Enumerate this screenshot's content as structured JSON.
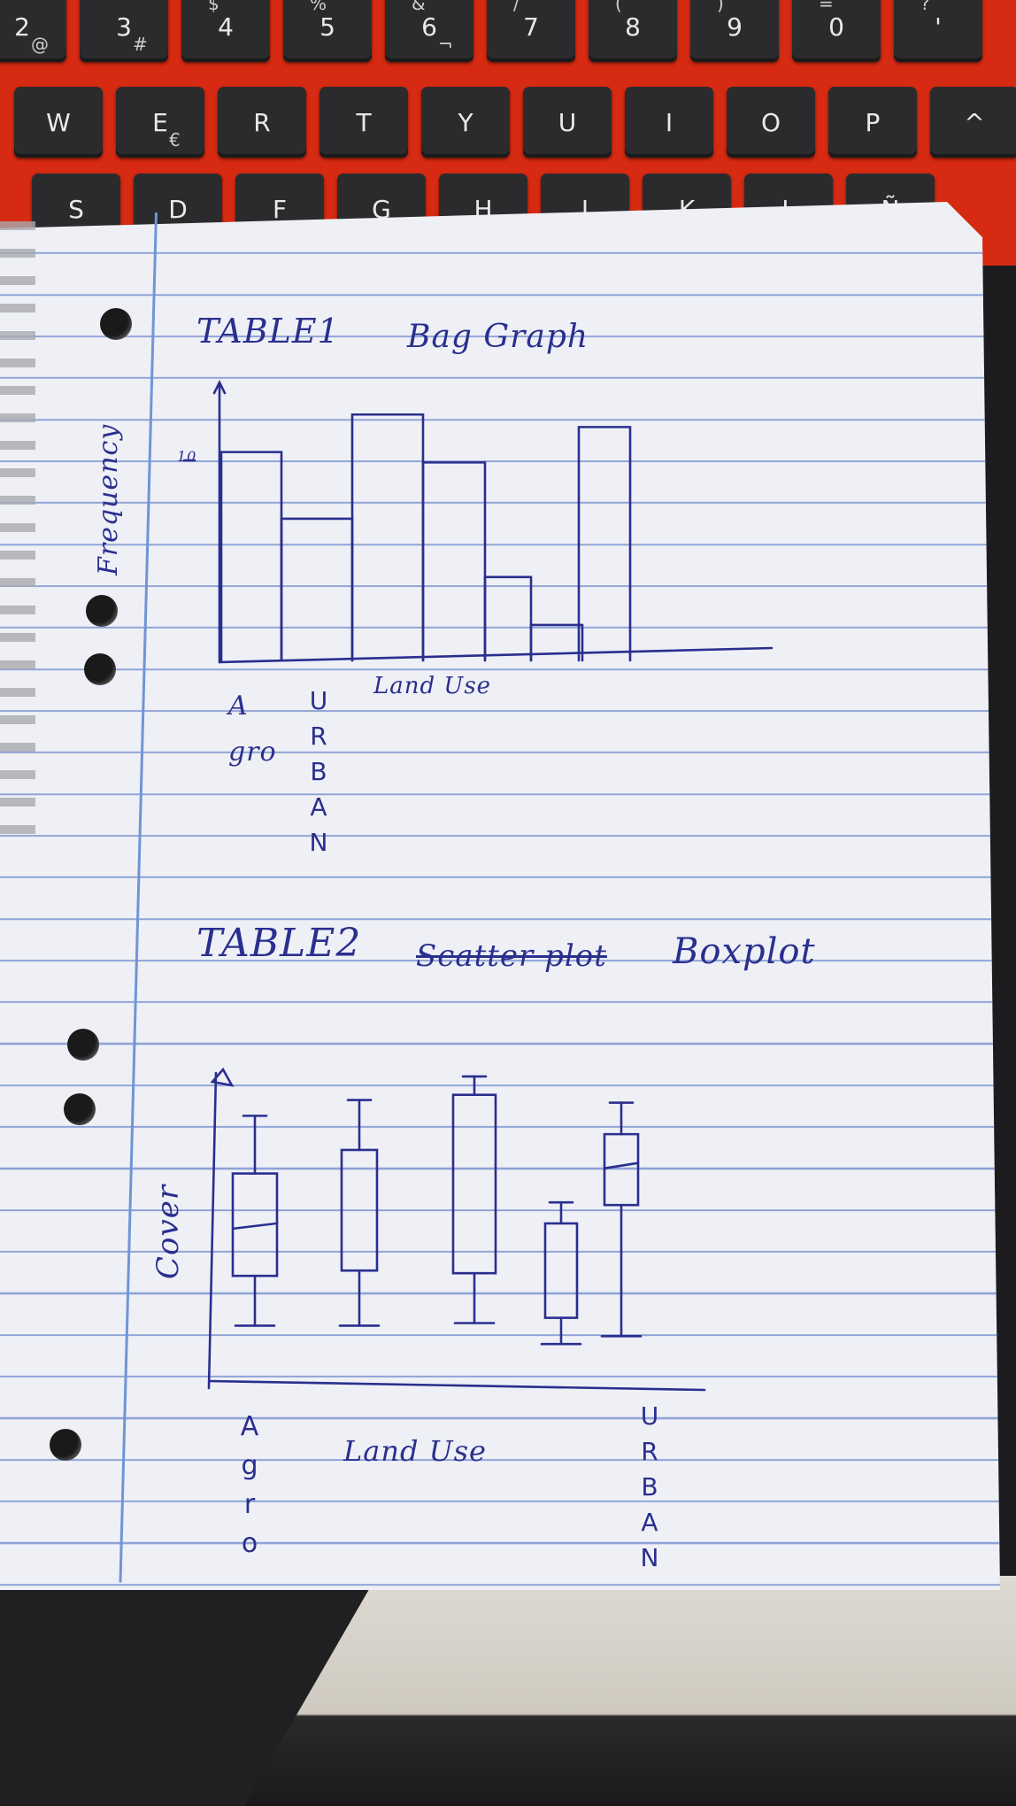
{
  "keyboard": {
    "row1": [
      {
        "main": "2",
        "sub": "@"
      },
      {
        "main": "3",
        "sub": "#"
      },
      {
        "main": "4",
        "sup": "$"
      },
      {
        "main": "5",
        "sup": "%"
      },
      {
        "main": "6",
        "sup": "&",
        "sub": "¬"
      },
      {
        "main": "7",
        "sup": "/"
      },
      {
        "main": "8",
        "sup": "("
      },
      {
        "main": "9",
        "sup": ")"
      },
      {
        "main": "0",
        "sup": "="
      },
      {
        "main": "'",
        "sup": "?"
      }
    ],
    "row2": [
      {
        "main": "W"
      },
      {
        "main": "E",
        "sub": "€"
      },
      {
        "main": "R"
      },
      {
        "main": "T"
      },
      {
        "main": "Y"
      },
      {
        "main": "U"
      },
      {
        "main": "I"
      },
      {
        "main": "O"
      },
      {
        "main": "P"
      },
      {
        "main": "^"
      }
    ],
    "row3": [
      "S",
      "D",
      "F",
      "G",
      "H",
      "J",
      "K",
      "L",
      "Ñ"
    ]
  },
  "notes": {
    "table1_title": "TABLE1",
    "table1_heading": "Bag Graph",
    "table1_ylabel": "Frequency",
    "table1_ytick": "10",
    "table1_xlabel": "Land Use",
    "table1_first_label": "A gro",
    "table1_urban_label": [
      "U",
      "R",
      "B",
      "A",
      "N"
    ],
    "table2_title": "TABLE2",
    "table2_crossed": "Scatter plot",
    "table2_heading": "Boxplot",
    "table2_ylabel": "Cover",
    "table2_xlabel": "Land Use",
    "table2_agro_label": [
      "A",
      "g",
      "r",
      "o"
    ],
    "table2_urban_label": [
      "U",
      "R",
      "B",
      "A",
      "N"
    ]
  },
  "chart_data": [
    {
      "type": "bar",
      "title": "Bag Graph",
      "xlabel": "Land Use",
      "ylabel": "Frequency",
      "categories": [
        "A gro",
        "URBAN",
        "",
        "",
        "",
        "",
        ""
      ],
      "values": [
        10,
        6.8,
        11.8,
        9.5,
        4,
        1.7,
        11.2
      ],
      "ylim": [
        0,
        13
      ]
    },
    {
      "type": "boxplot",
      "title": "Boxplot",
      "xlabel": "Land Use",
      "ylabel": "Cover",
      "boxes": [
        {
          "label": "Agro",
          "min": 1.3,
          "q1": 3.2,
          "median": 5.1,
          "q3": 7.1,
          "max": 9.3
        },
        {
          "label": "",
          "min": 1.3,
          "q1": 3.4,
          "median": null,
          "q3": 8.0,
          "max": 9.9
        },
        {
          "label": "",
          "min": 1.4,
          "q1": 3.3,
          "median": null,
          "q3": 10.1,
          "max": 10.8
        },
        {
          "label": "",
          "min": 0.6,
          "q1": 1.6,
          "median": null,
          "q3": 5.2,
          "max": 6.0
        },
        {
          "label": "URBAN",
          "min": 0.9,
          "q1": 5.9,
          "median": 7.4,
          "q3": 8.6,
          "max": 9.8
        }
      ]
    }
  ]
}
